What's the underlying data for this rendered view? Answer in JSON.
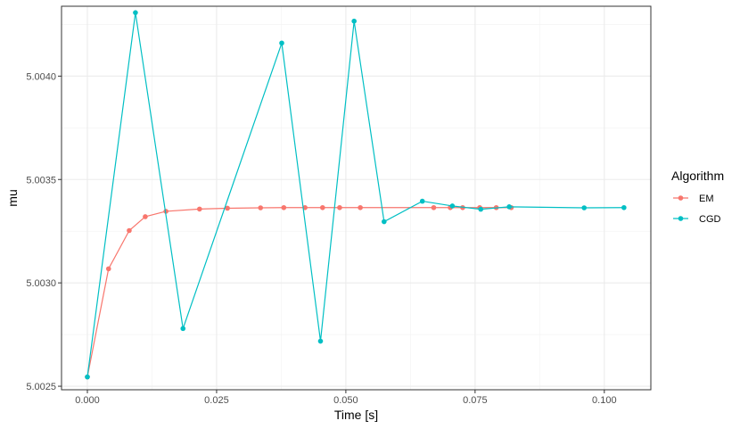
{
  "chart_data": {
    "type": "line",
    "title": "",
    "xlabel": "Time [s]",
    "ylabel": "mu",
    "xlim": [
      -0.005,
      0.109
    ],
    "ylim": [
      5.002483,
      5.004338
    ],
    "xticks": [
      0.0,
      0.025,
      0.05,
      0.075,
      0.1
    ],
    "xtick_labels": [
      "0.000",
      "0.025",
      "0.050",
      "0.075",
      "0.100"
    ],
    "yticks": [
      5.0025,
      5.003,
      5.0035,
      5.004
    ],
    "ytick_labels": [
      "5.0025",
      "5.0030",
      "5.0035",
      "5.0040"
    ],
    "grid": true,
    "legend": {
      "title": "Algorithm",
      "position": "right"
    },
    "series": [
      {
        "name": "EM",
        "color": "#F8766D",
        "x": [
          0.0,
          0.0041,
          0.0081,
          0.0112,
          0.0152,
          0.0217,
          0.0271,
          0.0335,
          0.038,
          0.0421,
          0.0455,
          0.0488,
          0.0528,
          0.067,
          0.0702,
          0.0726,
          0.0759,
          0.0791,
          0.082
        ],
        "y": [
          5.002545,
          5.003068,
          5.003253,
          5.00332,
          5.003346,
          5.003357,
          5.003361,
          5.003363,
          5.003364,
          5.003364,
          5.003364,
          5.003364,
          5.003364,
          5.003364,
          5.003364,
          5.003364,
          5.003364,
          5.003364,
          5.003364
        ]
      },
      {
        "name": "CGD",
        "color": "#00BFC4",
        "x": [
          0.0,
          0.0093,
          0.0185,
          0.0376,
          0.0451,
          0.0516,
          0.0574,
          0.0648,
          0.0706,
          0.0761,
          0.0816,
          0.0961,
          0.1038
        ],
        "y": [
          5.002545,
          5.004307,
          5.002779,
          5.00416,
          5.002718,
          5.004266,
          5.003296,
          5.003395,
          5.003372,
          5.003356,
          5.003368,
          5.003363,
          5.003364
        ]
      }
    ]
  }
}
